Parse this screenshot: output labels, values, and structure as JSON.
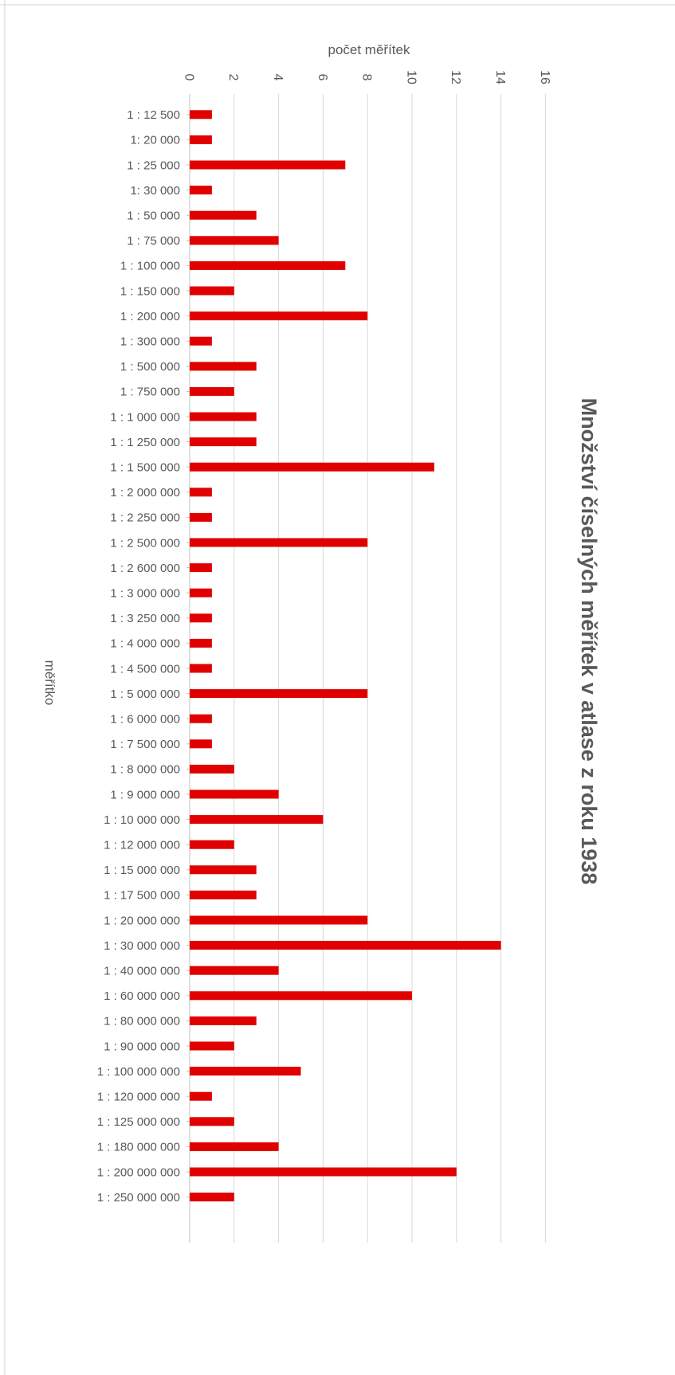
{
  "chart_data": {
    "type": "bar",
    "orientation": "horizontal",
    "title": "Množství číselných měřítek v  atlase z roku 1938",
    "xlabel": "počet měřítek",
    "ylabel": "měřítko",
    "xlim": [
      0,
      16
    ],
    "x_ticks": [
      0,
      2,
      4,
      6,
      8,
      10,
      12,
      14,
      16
    ],
    "grid": true,
    "legend": "none",
    "bar_color": "#e00000",
    "categories": [
      "1 : 12 500",
      "1: 20 000",
      "1 : 25 000",
      "1: 30 000",
      "1 : 50 000",
      "1 : 75 000",
      "1 : 100 000",
      "1 : 150 000",
      "1 : 200 000",
      "1 : 300 000",
      "1 : 500 000",
      "1 : 750 000",
      "1 : 1 000 000",
      "1 : 1 250 000",
      "1 : 1 500 000",
      "1 : 2 000 000",
      "1 : 2 250 000",
      "1 : 2 500 000",
      "1 : 2 600 000",
      "1 : 3 000 000",
      "1 : 3 250 000",
      "1 : 4 000 000",
      "1 : 4 500 000",
      "1 : 5 000 000",
      "1 : 6 000 000",
      "1 : 7 500 000",
      "1 : 8 000 000",
      "1 : 9 000 000",
      "1 : 10 000 000",
      "1 : 12 000 000",
      "1 : 15 000 000",
      "1 : 17 500 000",
      "1 : 20 000 000",
      "1 : 30 000 000",
      "1 : 40 000 000",
      "1 : 60 000 000",
      "1 : 80 000 000",
      "1 : 90 000 000",
      "1 : 100 000 000",
      "1 : 120 000 000",
      "1 : 125 000 000",
      "1 : 180 000 000",
      "1 : 200 000 000",
      "1 : 250 000 000"
    ],
    "values": [
      1,
      1,
      7,
      1,
      3,
      4,
      7,
      2,
      8,
      1,
      3,
      2,
      3,
      3,
      11,
      1,
      1,
      8,
      1,
      1,
      1,
      1,
      1,
      8,
      1,
      1,
      2,
      4,
      6,
      2,
      3,
      3,
      8,
      14,
      4,
      10,
      3,
      2,
      5,
      1,
      2,
      4,
      12,
      2
    ]
  }
}
